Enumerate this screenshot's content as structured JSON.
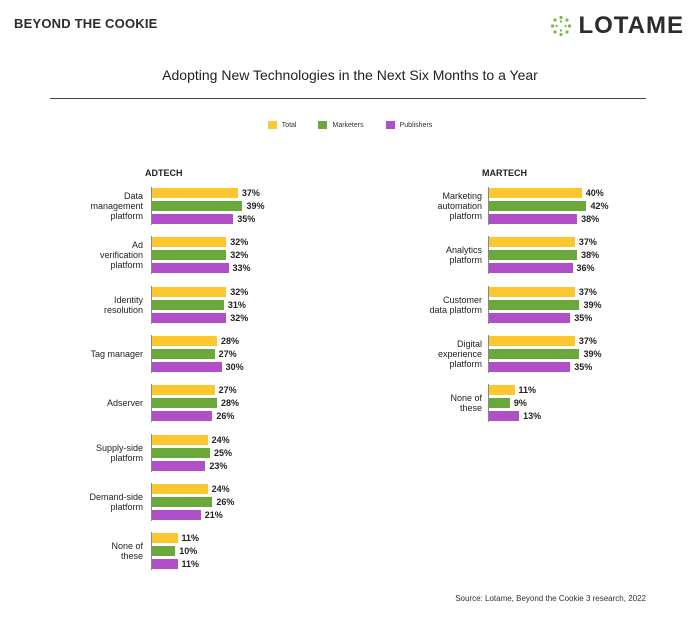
{
  "header": {
    "brand": "BEYOND THE COOKIE",
    "logo": "LOTAME"
  },
  "colors": {
    "total": "#fdc82f",
    "marketers": "#6aa83b",
    "publishers": "#b14fc8",
    "logo_accent": "#7ab648"
  },
  "chart_data": {
    "type": "bar",
    "orientation": "horizontal",
    "title": "Adopting New Technologies in the Next Six Months to a Year",
    "legend": [
      {
        "name": "Total",
        "color": "#fdc82f"
      },
      {
        "name": "Marketers",
        "color": "#6aa83b"
      },
      {
        "name": "Publishers",
        "color": "#b14fc8"
      }
    ],
    "legend_position": "top",
    "unit": "%",
    "panels": [
      {
        "title": "ADTECH",
        "categories": [
          {
            "label": [
              "Data",
              "management",
              "platform"
            ],
            "values": [
              37,
              39,
              35
            ]
          },
          {
            "label": [
              "Ad",
              "verification",
              "platform"
            ],
            "values": [
              32,
              32,
              33
            ]
          },
          {
            "label": [
              "Identity",
              "resolution"
            ],
            "values": [
              32,
              31,
              32
            ]
          },
          {
            "label": [
              "Tag manager"
            ],
            "values": [
              28,
              27,
              30
            ]
          },
          {
            "label": [
              "Adserver"
            ],
            "values": [
              27,
              28,
              26
            ]
          },
          {
            "label": [
              "Supply-side",
              "platform"
            ],
            "values": [
              24,
              25,
              23
            ]
          },
          {
            "label": [
              "Demand-side",
              "platform"
            ],
            "values": [
              24,
              26,
              21
            ]
          },
          {
            "label": [
              "None of",
              "these"
            ],
            "values": [
              11,
              10,
              11
            ]
          }
        ]
      },
      {
        "title": "MARTECH",
        "categories": [
          {
            "label": [
              "Marketing",
              "automation",
              "platform"
            ],
            "values": [
              40,
              42,
              38
            ]
          },
          {
            "label": [
              "Analytics",
              "platform"
            ],
            "values": [
              37,
              38,
              36
            ]
          },
          {
            "label": [
              "Customer",
              "data platform"
            ],
            "values": [
              37,
              39,
              35
            ]
          },
          {
            "label": [
              "Digital",
              "experience",
              "platform"
            ],
            "values": [
              37,
              39,
              35
            ]
          },
          {
            "label": [
              "None of",
              "these"
            ],
            "values": [
              11,
              9,
              13
            ]
          }
        ]
      }
    ]
  },
  "source": "Source: Lotame, Beyond the Cookie 3 research, 2022"
}
